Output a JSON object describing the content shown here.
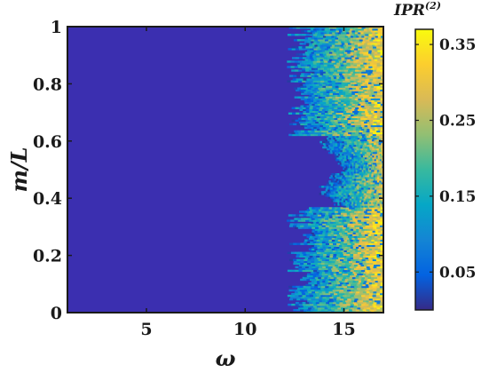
{
  "chart_data": {
    "type": "heatmap",
    "xlabel": "ω",
    "ylabel": "m/L",
    "xlim": [
      1,
      17
    ],
    "ylim": [
      0,
      1
    ],
    "x_ticks": [
      {
        "value": 5,
        "label": "5"
      },
      {
        "value": 10,
        "label": "10"
      },
      {
        "value": 15,
        "label": "15"
      }
    ],
    "y_ticks": [
      {
        "value": 0,
        "label": "0"
      },
      {
        "value": 0.2,
        "label": "0.2"
      },
      {
        "value": 0.4,
        "label": "0.4"
      },
      {
        "value": 0.6,
        "label": "0.6"
      },
      {
        "value": 0.8,
        "label": "0.8"
      },
      {
        "value": 1,
        "label": "1"
      }
    ],
    "colorbar": {
      "title": "IPR",
      "title_superscript": "(2)",
      "range": [
        0,
        0.37
      ],
      "ticks": [
        {
          "value": 0.05,
          "label": "0.05"
        },
        {
          "value": 0.15,
          "label": "0.15"
        },
        {
          "value": 0.25,
          "label": "0.25"
        },
        {
          "value": 0.35,
          "label": "0.35"
        }
      ],
      "colormap": "parula"
    },
    "regions": [
      {
        "omega_range": [
          1,
          12.2
        ],
        "m_over_L": [
          0,
          1
        ],
        "ipr_approx": 0.01
      },
      {
        "omega_range": [
          12.2,
          17
        ],
        "m_over_L": [
          0,
          0.37
        ],
        "ipr_approx": [
          0.1,
          0.37
        ]
      },
      {
        "omega_range": [
          14.2,
          17
        ],
        "m_over_L": [
          0.37,
          0.62
        ],
        "ipr_approx": [
          0.05,
          0.33
        ]
      },
      {
        "omega_range": [
          12.2,
          17
        ],
        "m_over_L": [
          0.62,
          1
        ],
        "ipr_approx": [
          0.1,
          0.37
        ]
      }
    ],
    "grid": false,
    "legend": "colorbar-right"
  }
}
